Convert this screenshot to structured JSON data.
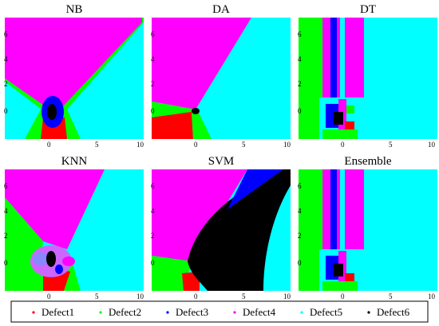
{
  "colors": {
    "Defect1": "#ff0000",
    "Defect2": "#00ff00",
    "Defect3": "#0000ff",
    "Defect4": "#ff00ff",
    "Defect5": "#00ffff",
    "Defect6": "#000000"
  },
  "chart_data": [
    {
      "type": "heatmap",
      "title": "NB",
      "xticks": [
        0,
        5,
        10
      ],
      "yticks": [
        0,
        2,
        4,
        6
      ],
      "xlim": [
        -3.5,
        10.5
      ],
      "ylim": [
        -1.8,
        7
      ]
    },
    {
      "type": "heatmap",
      "title": "DA",
      "xticks": [
        0,
        5,
        10
      ],
      "yticks": [
        0,
        2,
        4,
        6
      ],
      "xlim": [
        -3.5,
        10.5
      ],
      "ylim": [
        -1.8,
        7
      ]
    },
    {
      "type": "heatmap",
      "title": "DT",
      "xticks": [
        0,
        5,
        10
      ],
      "yticks": [
        0,
        2,
        4,
        6
      ],
      "xlim": [
        -3.5,
        10.5
      ],
      "ylim": [
        -1.8,
        7
      ]
    },
    {
      "type": "heatmap",
      "title": "KNN",
      "xticks": [
        0,
        5,
        10
      ],
      "yticks": [
        0,
        2,
        4,
        6
      ],
      "xlim": [
        -3.5,
        10.5
      ],
      "ylim": [
        -1.8,
        7
      ]
    },
    {
      "type": "heatmap",
      "title": "SVM",
      "xticks": [
        0,
        5,
        10
      ],
      "yticks": [
        0,
        2,
        4,
        6
      ],
      "xlim": [
        -3.5,
        10.5
      ],
      "ylim": [
        -1.8,
        7
      ]
    },
    {
      "type": "heatmap",
      "title": "Ensemble",
      "xticks": [
        0,
        5,
        10
      ],
      "yticks": [
        0,
        2,
        4,
        6
      ],
      "xlim": [
        -3.5,
        10.5
      ],
      "ylim": [
        -1.8,
        7
      ]
    }
  ],
  "legend": {
    "position": "bottom",
    "items": [
      {
        "label": "Defect1",
        "color": "#ff0000"
      },
      {
        "label": "Defect2",
        "color": "#00ff00"
      },
      {
        "label": "Defect3",
        "color": "#0000ff"
      },
      {
        "label": "Defect4",
        "color": "#ff00ff"
      },
      {
        "label": "Defect5",
        "color": "#00ffff"
      },
      {
        "label": "Defect6",
        "color": "#000000"
      }
    ]
  }
}
